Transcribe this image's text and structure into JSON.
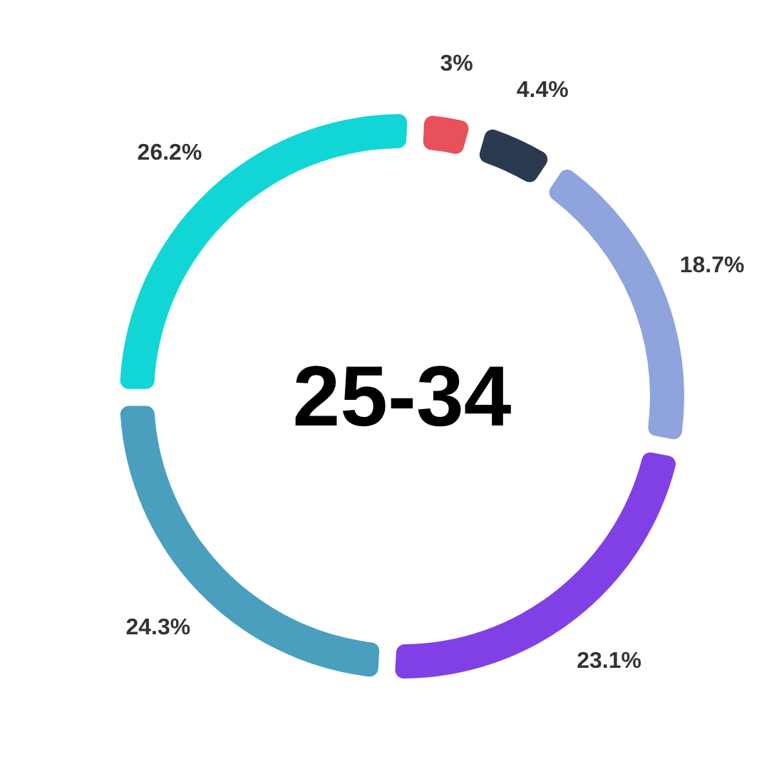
{
  "chart_data": {
    "type": "donut",
    "title": "25-34",
    "categories": [
      null,
      null,
      null,
      null,
      null,
      null
    ],
    "values": [
      3,
      4.4,
      18.7,
      23.1,
      24.3,
      26.2
    ],
    "colors": [
      "#e8505b",
      "#2a3a4f",
      "#8fa3dc",
      "#8040e6",
      "#4a9fbf",
      "#12d6d6"
    ],
    "value_labels": [
      "3%",
      "4.4%",
      "18.7%",
      "23.1%",
      "24.3%",
      "26.2%"
    ]
  }
}
